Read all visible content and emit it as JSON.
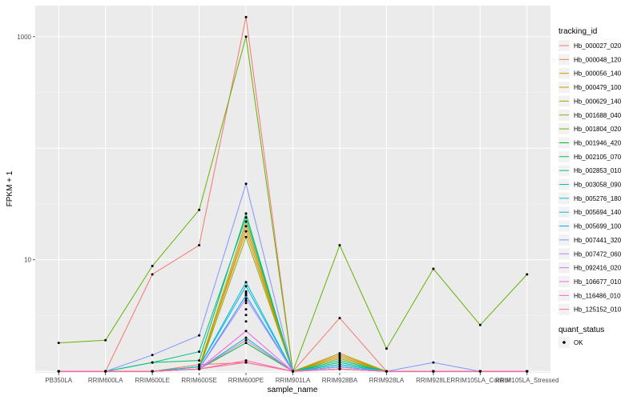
{
  "chart_data": {
    "type": "line",
    "xlabel": "sample_name",
    "ylabel": "FPKM + 1",
    "y_scale": "log10",
    "ylim": [
      0.97,
      1900
    ],
    "y_ticks": [
      10,
      1000
    ],
    "y_tick_labels": [
      "10",
      "1000"
    ],
    "grid": true,
    "legend_position": "right",
    "categories": [
      "PB350LA",
      "RRIM600LA",
      "RRIM600LE",
      "RRIM600SE",
      "RRIM600PE",
      "RRIM901LA",
      "RRIM928BA",
      "RRIM928LA",
      "RRIM928LE",
      "RRIM105LA_Control",
      "RRIM105LA_Stressed"
    ],
    "series": [
      {
        "name": "Hb_000027_020",
        "color": "#F8766D",
        "values": [
          1,
          1,
          7.4,
          13.5,
          1500,
          1,
          3,
          1,
          1,
          1,
          1
        ]
      },
      {
        "name": "Hb_000048_120",
        "color": "#EE8044",
        "values": [
          1,
          1,
          1,
          1.15,
          1.2,
          1,
          1.05,
          1,
          1,
          1,
          1
        ]
      },
      {
        "name": "Hb_000056_140",
        "color": "#DE8C00",
        "values": [
          1,
          1,
          1,
          1.1,
          18,
          1,
          1.4,
          1,
          1,
          1,
          1
        ]
      },
      {
        "name": "Hb_000479_100",
        "color": "#CD9600",
        "values": [
          1,
          1,
          1,
          1.05,
          20,
          1,
          1.35,
          1,
          1,
          1,
          1
        ]
      },
      {
        "name": "Hb_000629_140",
        "color": "#AEA200",
        "values": [
          1,
          1,
          1,
          1.1,
          22,
          1,
          1.45,
          1,
          1,
          1,
          1
        ]
      },
      {
        "name": "Hb_001688_040",
        "color": "#8EAB00",
        "values": [
          1,
          1,
          1,
          1.05,
          16,
          1,
          1.3,
          1,
          1,
          1,
          1
        ]
      },
      {
        "name": "Hb_001804_020",
        "color": "#64B200",
        "values": [
          1.8,
          1.9,
          8.8,
          28,
          1000,
          1,
          13.5,
          1.6,
          8.3,
          2.6,
          7.4
        ]
      },
      {
        "name": "Hb_001946_420",
        "color": "#00B81F",
        "values": [
          1,
          1,
          1,
          1.05,
          1.8,
          1,
          1.1,
          1,
          1,
          1,
          1
        ]
      },
      {
        "name": "Hb_002105_070",
        "color": "#00BD5C",
        "values": [
          1,
          1,
          1.2,
          1.25,
          26,
          1,
          1.2,
          1,
          1,
          1,
          1
        ]
      },
      {
        "name": "Hb_002853_010",
        "color": "#00C08E",
        "values": [
          1,
          1,
          1.2,
          1.5,
          24,
          1,
          1.25,
          1,
          1,
          1,
          1
        ]
      },
      {
        "name": "Hb_003058_090",
        "color": "#00C0B8",
        "values": [
          1,
          1,
          1,
          1.05,
          2.0,
          1,
          1.15,
          1,
          1,
          1,
          1
        ]
      },
      {
        "name": "Hb_005276_180",
        "color": "#00BDD4",
        "values": [
          1,
          1,
          1,
          1.1,
          6.3,
          1,
          1.15,
          1,
          1,
          1,
          1
        ]
      },
      {
        "name": "Hb_005694_140",
        "color": "#00B5EE",
        "values": [
          1,
          1,
          1,
          1.1,
          5.8,
          1,
          1.1,
          1,
          1,
          1,
          1
        ]
      },
      {
        "name": "Hb_005699_100",
        "color": "#00A7FF",
        "values": [
          1,
          1,
          1,
          1.05,
          4.8,
          1,
          1.1,
          1,
          1,
          1,
          1
        ]
      },
      {
        "name": "Hb_007441_320",
        "color": "#7F96FF",
        "values": [
          1,
          1,
          1.4,
          2.1,
          48,
          1,
          1.1,
          1,
          1.2,
          1,
          1
        ]
      },
      {
        "name": "Hb_007472_060",
        "color": "#BC81FF",
        "values": [
          1,
          1,
          1,
          1.05,
          4.5,
          1,
          1.05,
          1,
          1,
          1,
          1
        ]
      },
      {
        "name": "Hb_092416_020",
        "color": "#E26EF7",
        "values": [
          1,
          1,
          1,
          1.05,
          1.9,
          1,
          1.05,
          1,
          1,
          1,
          1
        ]
      },
      {
        "name": "Hb_106677_010",
        "color": "#F863DF",
        "values": [
          1,
          1,
          1,
          1.05,
          2.3,
          1,
          1.05,
          1,
          1,
          1,
          1
        ]
      },
      {
        "name": "Hb_116486_010",
        "color": "#FF62BC",
        "values": [
          1,
          1,
          1,
          1.05,
          1.25,
          1,
          1.05,
          1,
          1,
          1,
          1
        ]
      },
      {
        "name": "Hb_125152_010",
        "color": "#FF6C91",
        "values": [
          1,
          1,
          1,
          1.05,
          1.2,
          1,
          1.05,
          1,
          1,
          1,
          1
        ]
      }
    ],
    "extra_point_values": [
      2.8,
      3.2,
      3.6,
      4.1,
      4.3,
      5.0,
      5.2
    ],
    "legend": {
      "color_title": "tracking_id",
      "shape_title": "quant_status",
      "shape_label": "OK"
    },
    "colors": {
      "panel_bg": "#EBEBEB",
      "grid_major": "#FFFFFF",
      "grid_minor": "#F5F5F5",
      "legend_key_bg": "#F2F2F2",
      "point": "#000000"
    }
  }
}
